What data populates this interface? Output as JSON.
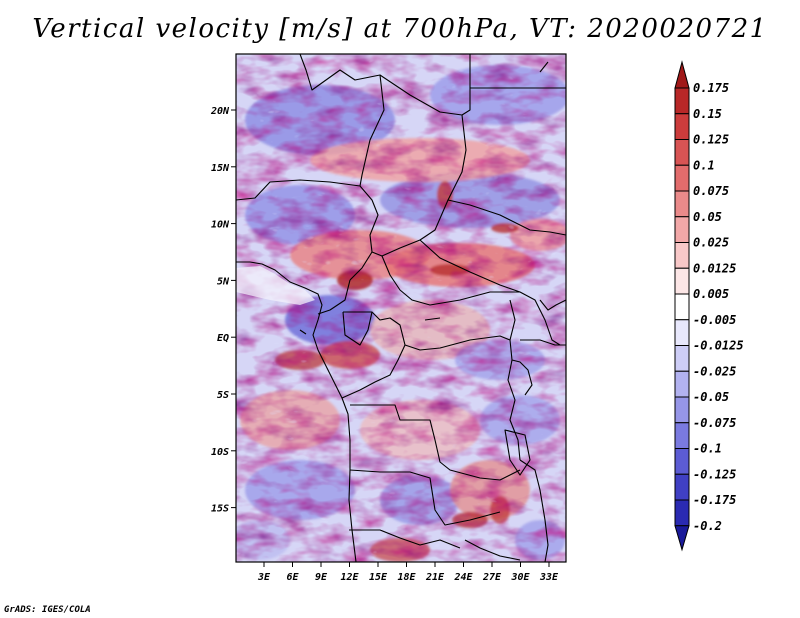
{
  "title": "Vertical velocity [m/s] at 700hPa, VT: 2020020721",
  "credit": "GrADS: IGES/COLA",
  "map": {
    "variable": "Vertical velocity",
    "units": "m/s",
    "level": "700hPa",
    "valid_time": "2020020721",
    "lon_range_deg": [
      0,
      35
    ],
    "lat_range_deg": [
      -20,
      25
    ],
    "lat_ticks": [
      "20N",
      "15N",
      "10N",
      "5N",
      "EQ",
      "5S",
      "10S",
      "15S"
    ],
    "lon_ticks": [
      "3E",
      "6E",
      "9E",
      "12E",
      "15E",
      "18E",
      "21E",
      "24E",
      "27E",
      "30E",
      "33E"
    ],
    "boundaries": "country borders",
    "field_style": "shaded contours"
  },
  "colorbar": {
    "labels": [
      "0.175",
      "0.15",
      "0.125",
      "0.1",
      "0.075",
      "0.05",
      "0.025",
      "0.0125",
      "0.005",
      "-0.005",
      "-0.0125",
      "-0.025",
      "-0.05",
      "-0.075",
      "-0.1",
      "-0.125",
      "-0.175",
      "-0.2"
    ],
    "colors": [
      "#a01818",
      "#b82828",
      "#cc3c3c",
      "#d85454",
      "#e26c6c",
      "#ea8a8a",
      "#f2a8a8",
      "#f8c8c8",
      "#fce6e6",
      "#ffffff",
      "#e8e8fc",
      "#cdcdf6",
      "#b2b2f0",
      "#9696e8",
      "#7a7ae0",
      "#5c5cd4",
      "#4040c4",
      "#2a2ab2",
      "#1a1a9a"
    ],
    "orientation": "vertical",
    "ends": "triangular extensions"
  }
}
